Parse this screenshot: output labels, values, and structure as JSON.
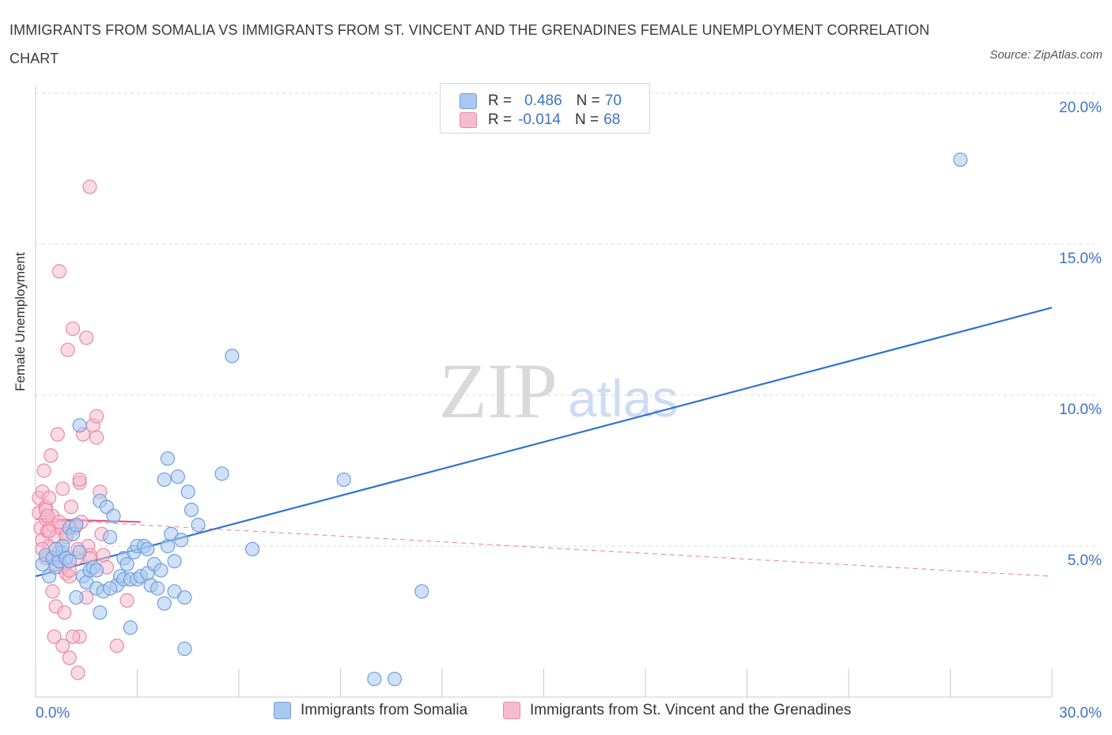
{
  "header": {
    "title": "IMMIGRANTS FROM SOMALIA VS IMMIGRANTS FROM ST. VINCENT AND THE GRENADINES FEMALE UNEMPLOYMENT CORRELATION CHART",
    "source": "Source: ZipAtlas.com"
  },
  "legend": {
    "somalia": {
      "r_label": "R =",
      "r_value": "0.486",
      "n_label": "N =",
      "n_value": "70"
    },
    "stvincent": {
      "r_label": "R =",
      "r_value": "-0.014",
      "n_label": "N =",
      "n_value": "68"
    }
  },
  "bottom_legend": {
    "somalia": "Immigrants from Somalia",
    "stvincent": "Immigrants from St. Vincent and the Grenadines"
  },
  "watermark": {
    "zip": "ZIP",
    "atlas": "atlas"
  },
  "colors": {
    "somalia_fill": "#aac8f0",
    "somalia_stroke": "#6f9fdc",
    "somalia_line": "#2f73d0",
    "stvincent_fill": "#f6bccd",
    "stvincent_stroke": "#e98aa6",
    "stvincent_line": "#e05c87",
    "axis_text": "#3c74c7",
    "grid": "#d8d8d8"
  },
  "chart_data": {
    "type": "scatter",
    "title": "IMMIGRANTS FROM SOMALIA VS IMMIGRANTS FROM ST. VINCENT AND THE GRENADINES FEMALE UNEMPLOYMENT CORRELATION CHART",
    "xlabel": "",
    "ylabel": "Female Unemployment",
    "xlim": [
      0,
      30
    ],
    "ylim": [
      0,
      20
    ],
    "x_tick_labels": [
      {
        "value": 0,
        "label": "0.0%"
      },
      {
        "value": 30,
        "label": "30.0%"
      }
    ],
    "y_tick_labels": [
      {
        "value": 5,
        "label": "5.0%"
      },
      {
        "value": 10,
        "label": "10.0%"
      },
      {
        "value": 15,
        "label": "15.0%"
      },
      {
        "value": 20,
        "label": "20.0%"
      }
    ],
    "grid": true,
    "legend_position": "top-center",
    "series": [
      {
        "name": "Immigrants from Somalia",
        "color": "#aac8f0",
        "trend": {
          "x": [
            0,
            30
          ],
          "y": [
            4.0,
            12.9
          ],
          "style": "solid"
        },
        "points": [
          [
            0.2,
            4.4
          ],
          [
            0.3,
            4.7
          ],
          [
            0.4,
            4.0
          ],
          [
            0.5,
            4.6
          ],
          [
            0.6,
            4.3
          ],
          [
            0.7,
            4.5
          ],
          [
            0.8,
            4.8
          ],
          [
            0.8,
            5.0
          ],
          [
            0.9,
            4.6
          ],
          [
            1.0,
            5.6
          ],
          [
            1.1,
            5.4
          ],
          [
            1.0,
            4.5
          ],
          [
            1.2,
            5.7
          ],
          [
            1.2,
            3.3
          ],
          [
            1.3,
            4.8
          ],
          [
            1.4,
            4.0
          ],
          [
            1.5,
            3.8
          ],
          [
            1.6,
            4.2
          ],
          [
            1.7,
            4.3
          ],
          [
            1.8,
            3.6
          ],
          [
            1.9,
            2.8
          ],
          [
            1.9,
            6.5
          ],
          [
            2.0,
            3.5
          ],
          [
            2.1,
            6.3
          ],
          [
            2.2,
            5.3
          ],
          [
            2.3,
            6.0
          ],
          [
            2.4,
            3.7
          ],
          [
            2.5,
            4.0
          ],
          [
            2.6,
            4.6
          ],
          [
            2.6,
            3.9
          ],
          [
            2.7,
            4.4
          ],
          [
            2.8,
            2.3
          ],
          [
            2.8,
            3.9
          ],
          [
            2.9,
            4.8
          ],
          [
            3.0,
            3.9
          ],
          [
            3.1,
            4.0
          ],
          [
            3.0,
            5.0
          ],
          [
            3.2,
            5.0
          ],
          [
            3.3,
            4.9
          ],
          [
            3.3,
            4.1
          ],
          [
            3.4,
            3.7
          ],
          [
            3.5,
            4.4
          ],
          [
            3.6,
            3.6
          ],
          [
            3.7,
            4.2
          ],
          [
            3.8,
            3.1
          ],
          [
            3.8,
            7.2
          ],
          [
            3.9,
            5.0
          ],
          [
            3.9,
            7.9
          ],
          [
            4.0,
            5.4
          ],
          [
            4.1,
            4.5
          ],
          [
            4.1,
            3.5
          ],
          [
            4.2,
            7.3
          ],
          [
            4.3,
            5.2
          ],
          [
            4.4,
            3.3
          ],
          [
            4.4,
            1.6
          ],
          [
            4.5,
            6.8
          ],
          [
            4.6,
            6.2
          ],
          [
            4.8,
            5.7
          ],
          [
            5.5,
            7.4
          ],
          [
            5.8,
            11.3
          ],
          [
            6.4,
            4.9
          ],
          [
            9.1,
            7.2
          ],
          [
            10.0,
            0.6
          ],
          [
            10.6,
            0.6
          ],
          [
            11.4,
            3.5
          ],
          [
            27.3,
            17.8
          ],
          [
            1.3,
            9.0
          ],
          [
            0.6,
            4.9
          ],
          [
            1.8,
            4.2
          ],
          [
            2.2,
            3.6
          ]
        ]
      },
      {
        "name": "Immigrants from St. Vincent and the Grenadines",
        "color": "#f6bccd",
        "trend": {
          "x": [
            0,
            3.1
          ],
          "y": [
            5.9,
            5.8
          ],
          "style": "solid",
          "extended": {
            "x": [
              0,
              30
            ],
            "y": [
              5.9,
              4.0
            ],
            "style": "dashed"
          }
        },
        "points": [
          [
            0.1,
            6.6
          ],
          [
            0.1,
            6.1
          ],
          [
            0.15,
            5.6
          ],
          [
            0.2,
            5.2
          ],
          [
            0.2,
            6.8
          ],
          [
            0.25,
            7.5
          ],
          [
            0.3,
            5.9
          ],
          [
            0.3,
            6.3
          ],
          [
            0.35,
            5.5
          ],
          [
            0.4,
            5.0
          ],
          [
            0.4,
            6.6
          ],
          [
            0.45,
            8.0
          ],
          [
            0.5,
            5.7
          ],
          [
            0.5,
            3.5
          ],
          [
            0.55,
            4.6
          ],
          [
            0.6,
            5.3
          ],
          [
            0.6,
            3.0
          ],
          [
            0.65,
            8.7
          ],
          [
            0.7,
            4.8
          ],
          [
            0.7,
            14.1
          ],
          [
            0.75,
            5.6
          ],
          [
            0.8,
            4.3
          ],
          [
            0.8,
            6.9
          ],
          [
            0.85,
            2.8
          ],
          [
            0.9,
            4.1
          ],
          [
            0.9,
            5.4
          ],
          [
            0.95,
            11.5
          ],
          [
            1.0,
            4.0
          ],
          [
            1.0,
            1.3
          ],
          [
            1.05,
            6.3
          ],
          [
            1.1,
            12.2
          ],
          [
            1.15,
            5.6
          ],
          [
            1.2,
            4.6
          ],
          [
            1.25,
            0.8
          ],
          [
            1.3,
            2.0
          ],
          [
            1.3,
            7.1
          ],
          [
            1.35,
            5.8
          ],
          [
            1.4,
            8.7
          ],
          [
            1.5,
            3.3
          ],
          [
            1.5,
            11.9
          ],
          [
            1.55,
            5.0
          ],
          [
            1.6,
            4.7
          ],
          [
            1.7,
            9.0
          ],
          [
            1.6,
            4.6
          ],
          [
            1.8,
            9.3
          ],
          [
            1.8,
            8.6
          ],
          [
            1.6,
            16.9
          ],
          [
            1.9,
            6.8
          ],
          [
            1.95,
            5.4
          ],
          [
            2.0,
            4.7
          ],
          [
            2.1,
            4.3
          ],
          [
            2.4,
            1.7
          ],
          [
            2.7,
            3.2
          ],
          [
            0.3,
            4.6
          ],
          [
            0.5,
            6.0
          ],
          [
            0.6,
            4.4
          ],
          [
            0.4,
            5.5
          ],
          [
            0.2,
            4.9
          ],
          [
            0.8,
            1.7
          ],
          [
            0.9,
            5.3
          ],
          [
            0.3,
            6.2
          ],
          [
            0.7,
            5.8
          ],
          [
            1.1,
            2.0
          ],
          [
            1.3,
            7.2
          ],
          [
            1.25,
            4.9
          ],
          [
            0.55,
            2.0
          ],
          [
            0.35,
            6.0
          ],
          [
            1.0,
            4.2
          ]
        ]
      }
    ]
  }
}
